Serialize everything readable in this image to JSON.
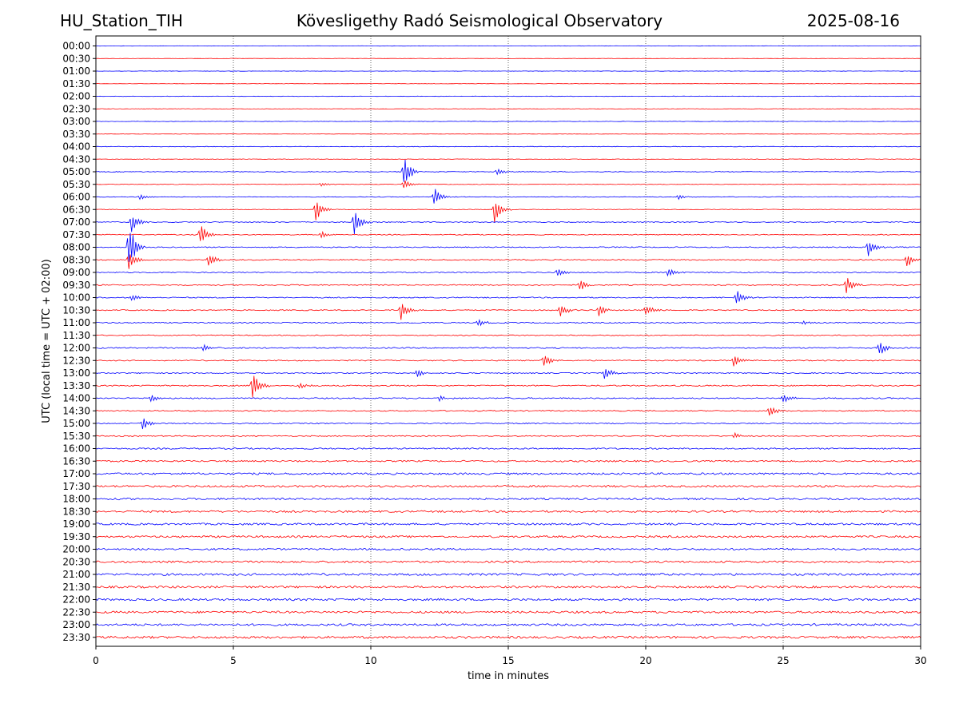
{
  "header": {
    "station": "HU_Station_TIH",
    "observatory": "Kövesligethy Radó Seismological Observatory",
    "date": "2025-08-16"
  },
  "chart_data": {
    "type": "line",
    "title": "Kövesligethy Radó Seismological Observatory",
    "xlabel": "time in minutes",
    "ylabel": "UTC (local time = UTC + 02:00)",
    "xlim": [
      0,
      30
    ],
    "x_ticks": [
      "0",
      "5",
      "10",
      "15",
      "20",
      "25",
      "30"
    ],
    "grid": "vertical dotted lines every 5 minutes",
    "colors": {
      "even_trace": "#0000ff",
      "odd_trace": "#ff0000"
    },
    "traces": [
      {
        "label": "00:00",
        "noise": 0.1,
        "events": []
      },
      {
        "label": "00:30",
        "noise": 0.1,
        "events": []
      },
      {
        "label": "01:00",
        "noise": 0.1,
        "events": []
      },
      {
        "label": "01:30",
        "noise": 0.1,
        "events": []
      },
      {
        "label": "02:00",
        "noise": 0.12,
        "events": []
      },
      {
        "label": "02:30",
        "noise": 0.12,
        "events": []
      },
      {
        "label": "03:00",
        "noise": 0.12,
        "events": []
      },
      {
        "label": "03:30",
        "noise": 0.1,
        "events": []
      },
      {
        "label": "04:00",
        "noise": 0.15,
        "events": []
      },
      {
        "label": "04:30",
        "noise": 0.15,
        "events": []
      },
      {
        "label": "05:00",
        "noise": 0.18,
        "events": [
          {
            "t": 11.2,
            "amp": 2.0
          },
          {
            "t": 14.6,
            "amp": 0.4
          }
        ]
      },
      {
        "label": "05:30",
        "noise": 0.15,
        "events": [
          {
            "t": 8.2,
            "amp": 0.3
          },
          {
            "t": 11.2,
            "amp": 0.6
          }
        ]
      },
      {
        "label": "06:00",
        "noise": 0.18,
        "events": [
          {
            "t": 1.6,
            "amp": 0.4
          },
          {
            "t": 12.3,
            "amp": 1.2
          },
          {
            "t": 21.2,
            "amp": 0.3
          }
        ]
      },
      {
        "label": "06:30",
        "noise": 0.18,
        "events": [
          {
            "t": 8.0,
            "amp": 1.4
          },
          {
            "t": 14.5,
            "amp": 1.6
          }
        ]
      },
      {
        "label": "07:00",
        "noise": 0.25,
        "events": [
          {
            "t": 9.4,
            "amp": 1.5
          },
          {
            "t": 1.3,
            "amp": 1.2
          }
        ]
      },
      {
        "label": "07:30",
        "noise": 0.25,
        "events": [
          {
            "t": 3.8,
            "amp": 1.3
          },
          {
            "t": 8.2,
            "amp": 0.4
          }
        ]
      },
      {
        "label": "08:00",
        "noise": 0.3,
        "events": [
          {
            "t": 1.2,
            "amp": 3.0
          },
          {
            "t": 28.1,
            "amp": 1.0
          }
        ]
      },
      {
        "label": "08:30",
        "noise": 0.3,
        "events": [
          {
            "t": 4.1,
            "amp": 0.8
          },
          {
            "t": 1.2,
            "amp": 1.2
          },
          {
            "t": 29.5,
            "amp": 1.0
          }
        ]
      },
      {
        "label": "09:00",
        "noise": 0.3,
        "events": [
          {
            "t": 16.8,
            "amp": 0.6
          },
          {
            "t": 20.8,
            "amp": 0.6
          }
        ]
      },
      {
        "label": "09:30",
        "noise": 0.3,
        "events": [
          {
            "t": 17.6,
            "amp": 0.7
          },
          {
            "t": 27.3,
            "amp": 1.1
          }
        ]
      },
      {
        "label": "10:00",
        "noise": 0.3,
        "events": [
          {
            "t": 23.3,
            "amp": 0.9
          },
          {
            "t": 1.3,
            "amp": 0.4
          }
        ]
      },
      {
        "label": "10:30",
        "noise": 0.3,
        "events": [
          {
            "t": 11.1,
            "amp": 1.3
          },
          {
            "t": 16.9,
            "amp": 0.8
          },
          {
            "t": 18.3,
            "amp": 0.7
          },
          {
            "t": 20.0,
            "amp": 0.8
          }
        ]
      },
      {
        "label": "11:00",
        "noise": 0.3,
        "events": [
          {
            "t": 13.9,
            "amp": 0.5
          },
          {
            "t": 25.7,
            "amp": 0.3
          }
        ]
      },
      {
        "label": "11:30",
        "noise": 0.28,
        "events": []
      },
      {
        "label": "12:00",
        "noise": 0.35,
        "events": [
          {
            "t": 3.9,
            "amp": 0.4
          },
          {
            "t": 28.5,
            "amp": 0.9
          }
        ]
      },
      {
        "label": "12:30",
        "noise": 0.3,
        "events": [
          {
            "t": 16.3,
            "amp": 0.8
          },
          {
            "t": 23.2,
            "amp": 0.7
          }
        ]
      },
      {
        "label": "13:00",
        "noise": 0.3,
        "events": [
          {
            "t": 11.7,
            "amp": 0.6
          },
          {
            "t": 18.5,
            "amp": 0.8
          }
        ]
      },
      {
        "label": "13:30",
        "noise": 0.35,
        "events": [
          {
            "t": 5.7,
            "amp": 1.6
          },
          {
            "t": 7.4,
            "amp": 0.4
          }
        ]
      },
      {
        "label": "14:00",
        "noise": 0.35,
        "events": [
          {
            "t": 2.0,
            "amp": 0.5
          },
          {
            "t": 12.5,
            "amp": 0.4
          },
          {
            "t": 25.0,
            "amp": 0.6
          }
        ]
      },
      {
        "label": "14:30",
        "noise": 0.3,
        "events": [
          {
            "t": 24.5,
            "amp": 0.7
          }
        ]
      },
      {
        "label": "15:00",
        "noise": 0.3,
        "events": [
          {
            "t": 1.7,
            "amp": 0.7
          }
        ]
      },
      {
        "label": "15:30",
        "noise": 0.3,
        "events": [
          {
            "t": 23.2,
            "amp": 0.4
          }
        ]
      },
      {
        "label": "16:00",
        "noise": 0.4,
        "events": []
      },
      {
        "label": "16:30",
        "noise": 0.45,
        "events": []
      },
      {
        "label": "17:00",
        "noise": 0.55,
        "events": []
      },
      {
        "label": "17:30",
        "noise": 0.55,
        "events": []
      },
      {
        "label": "18:00",
        "noise": 0.55,
        "events": []
      },
      {
        "label": "18:30",
        "noise": 0.55,
        "events": []
      },
      {
        "label": "19:00",
        "noise": 0.55,
        "events": []
      },
      {
        "label": "19:30",
        "noise": 0.55,
        "events": []
      },
      {
        "label": "20:00",
        "noise": 0.5,
        "events": []
      },
      {
        "label": "20:30",
        "noise": 0.55,
        "events": []
      },
      {
        "label": "21:00",
        "noise": 0.6,
        "events": []
      },
      {
        "label": "21:30",
        "noise": 0.6,
        "events": []
      },
      {
        "label": "22:00",
        "noise": 0.6,
        "events": []
      },
      {
        "label": "22:30",
        "noise": 0.6,
        "events": []
      },
      {
        "label": "23:00",
        "noise": 0.6,
        "events": []
      },
      {
        "label": "23:30",
        "noise": 0.65,
        "events": []
      }
    ]
  }
}
